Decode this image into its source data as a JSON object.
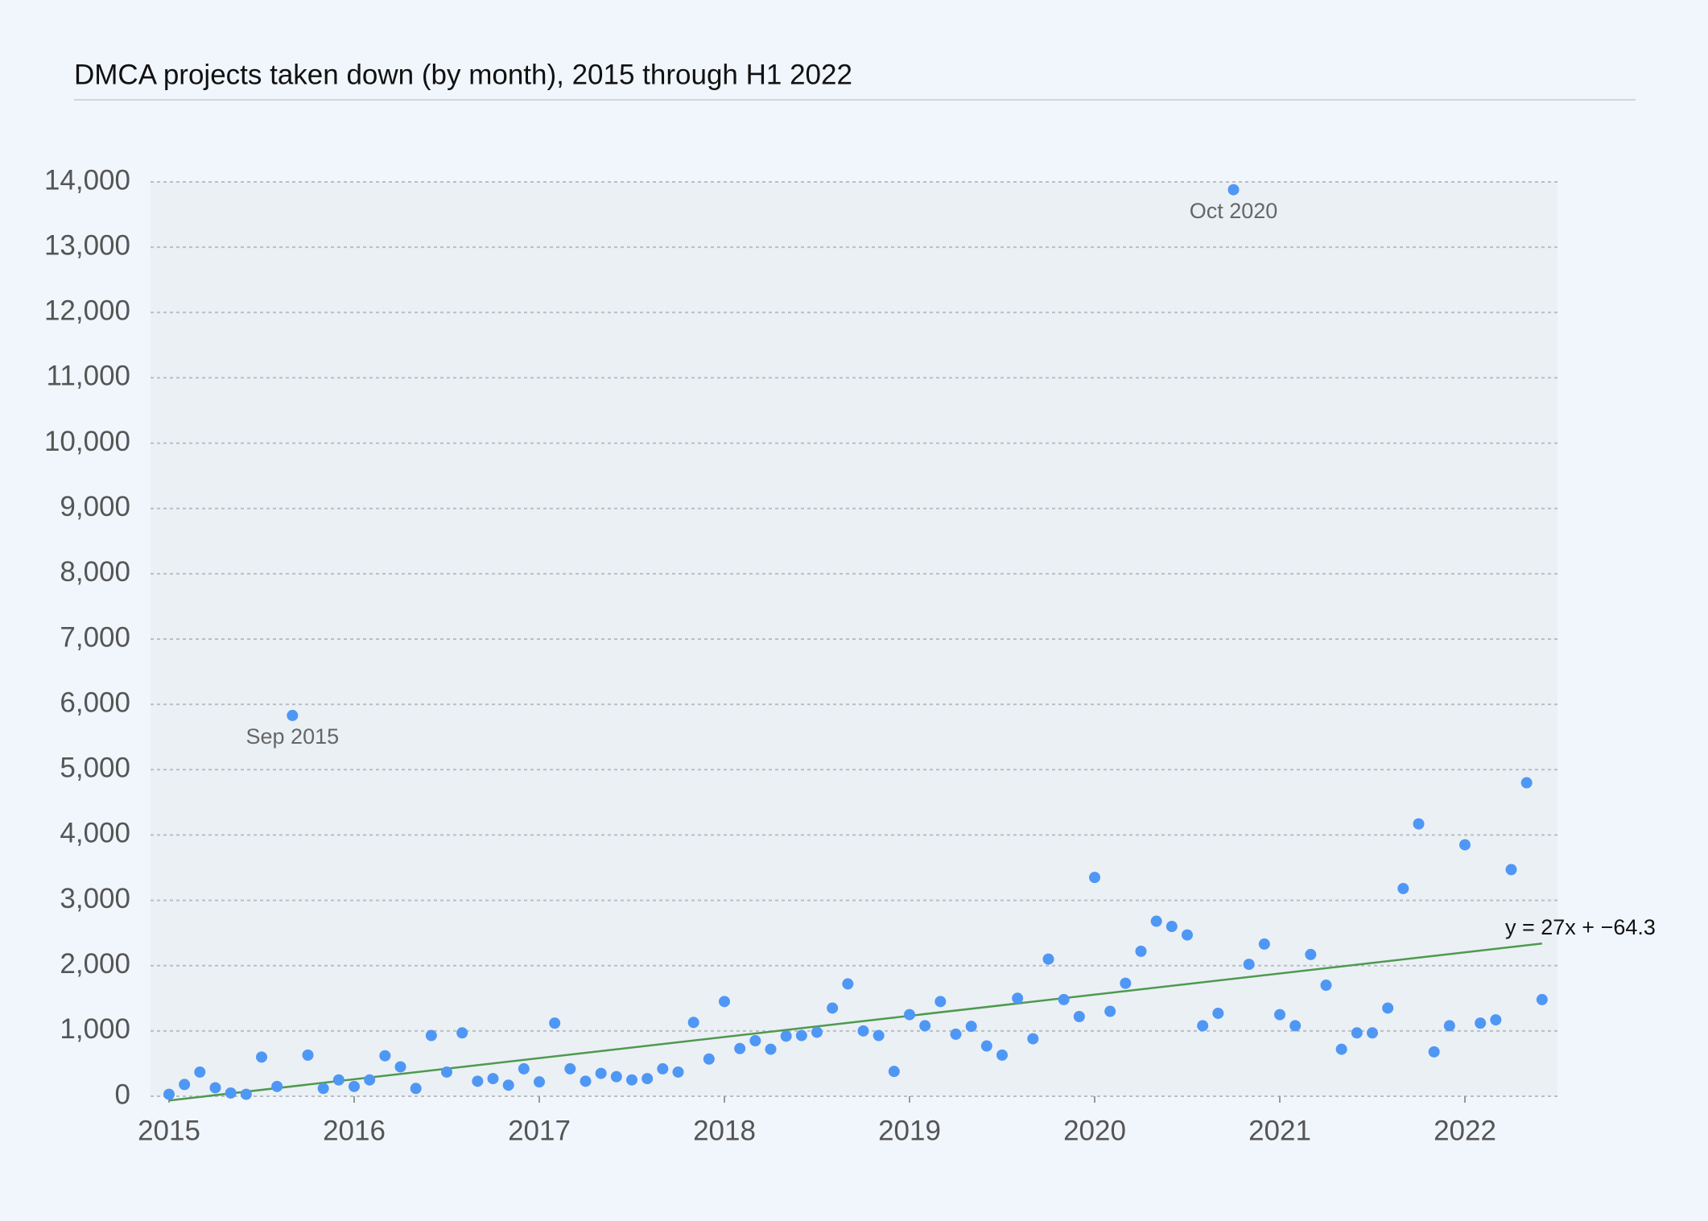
{
  "chart_data": {
    "type": "scatter",
    "title": "DMCA projects taken down (by month), 2015 through H1 2022",
    "x": [
      0,
      1,
      2,
      3,
      4,
      5,
      6,
      7,
      8,
      9,
      10,
      11,
      12,
      13,
      14,
      15,
      16,
      17,
      18,
      19,
      20,
      21,
      22,
      23,
      24,
      25,
      26,
      27,
      28,
      29,
      30,
      31,
      32,
      33,
      34,
      35,
      36,
      37,
      38,
      39,
      40,
      41,
      42,
      43,
      44,
      45,
      46,
      47,
      48,
      49,
      50,
      51,
      52,
      53,
      54,
      55,
      56,
      57,
      58,
      59,
      60,
      61,
      62,
      63,
      64,
      65,
      66,
      67,
      68,
      69,
      70,
      71,
      72,
      73,
      74,
      75,
      76,
      77,
      78,
      79,
      80,
      81,
      82,
      83,
      84,
      85,
      86,
      87,
      88,
      89
    ],
    "values": [
      30,
      180,
      370,
      130,
      50,
      30,
      600,
      150,
      5830,
      630,
      120,
      250,
      150,
      250,
      620,
      450,
      120,
      930,
      370,
      970,
      230,
      270,
      170,
      420,
      220,
      1120,
      420,
      230,
      350,
      300,
      250,
      270,
      420,
      370,
      1130,
      570,
      1450,
      730,
      850,
      720,
      920,
      930,
      980,
      1350,
      1720,
      1000,
      930,
      380,
      1250,
      1080,
      1450,
      950,
      1070,
      770,
      630,
      1500,
      880,
      2100,
      1480,
      1220,
      3350,
      1300,
      1730,
      2220,
      2680,
      2600,
      2470,
      1080,
      1270,
      13880,
      2020,
      2330,
      1250,
      1080,
      2170,
      1700,
      720,
      970,
      970,
      1350,
      3180,
      4170,
      680,
      1080,
      3850,
      1120,
      1170,
      3470,
      4800,
      1480
    ],
    "color": "#4f97f5",
    "xlim": [
      -1.2,
      90
    ],
    "xticks": [
      {
        "value": 0,
        "label": "2015"
      },
      {
        "value": 12,
        "label": "2016"
      },
      {
        "value": 24,
        "label": "2017"
      },
      {
        "value": 36,
        "label": "2018"
      },
      {
        "value": 48,
        "label": "2019"
      },
      {
        "value": 60,
        "label": "2020"
      },
      {
        "value": 72,
        "label": "2021"
      },
      {
        "value": 84,
        "label": "2022"
      }
    ],
    "ylim": [
      0,
      14000
    ],
    "yticks": [
      0,
      {
        "value": 1000,
        "label": "1,000"
      },
      {
        "value": 2000,
        "label": "2,000"
      },
      {
        "value": 3000,
        "label": "3,000"
      },
      {
        "value": 4000,
        "label": "4,000"
      },
      {
        "value": 5000,
        "label": "5,000"
      },
      {
        "value": 6000,
        "label": "6,000"
      },
      {
        "value": 7000,
        "label": "7,000"
      },
      {
        "value": 8000,
        "label": "8,000"
      },
      {
        "value": 9000,
        "label": "9,000"
      },
      {
        "value": 10000,
        "label": "10,000"
      },
      {
        "value": 11000,
        "label": "11,000"
      },
      {
        "value": 12000,
        "label": "12,000"
      },
      {
        "value": 13000,
        "label": "13,000"
      },
      {
        "value": 14000,
        "label": "14,000"
      }
    ],
    "grid": true,
    "trendline": {
      "slope": 27,
      "intercept": -64.3,
      "label": "y = 27x + −64.3",
      "color": "#4e9a4e"
    },
    "annotations": [
      {
        "label": "Sep 2015",
        "x": 8
      },
      {
        "label": "Oct 2020",
        "x": 69
      }
    ]
  }
}
